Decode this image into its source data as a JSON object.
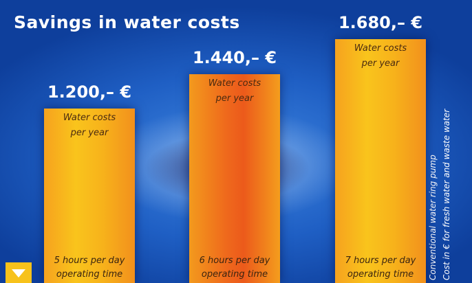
{
  "chart_data": {
    "type": "bar",
    "title": "Savings in water costs",
    "categories": [
      "5 hours per day operating time",
      "6 hours per day operating time",
      "7 hours per day operating time"
    ],
    "values": [
      1200,
      1440,
      1680
    ],
    "value_labels": [
      "1.200,– €",
      "1.440,– €",
      "1.680,– €"
    ],
    "bar_notes": [
      "Water costs per year",
      "Water costs per year",
      "Water costs per year"
    ],
    "notes": [
      "Conventional water ring pump",
      "Cost in € for fresh water and waste water"
    ]
  }
}
